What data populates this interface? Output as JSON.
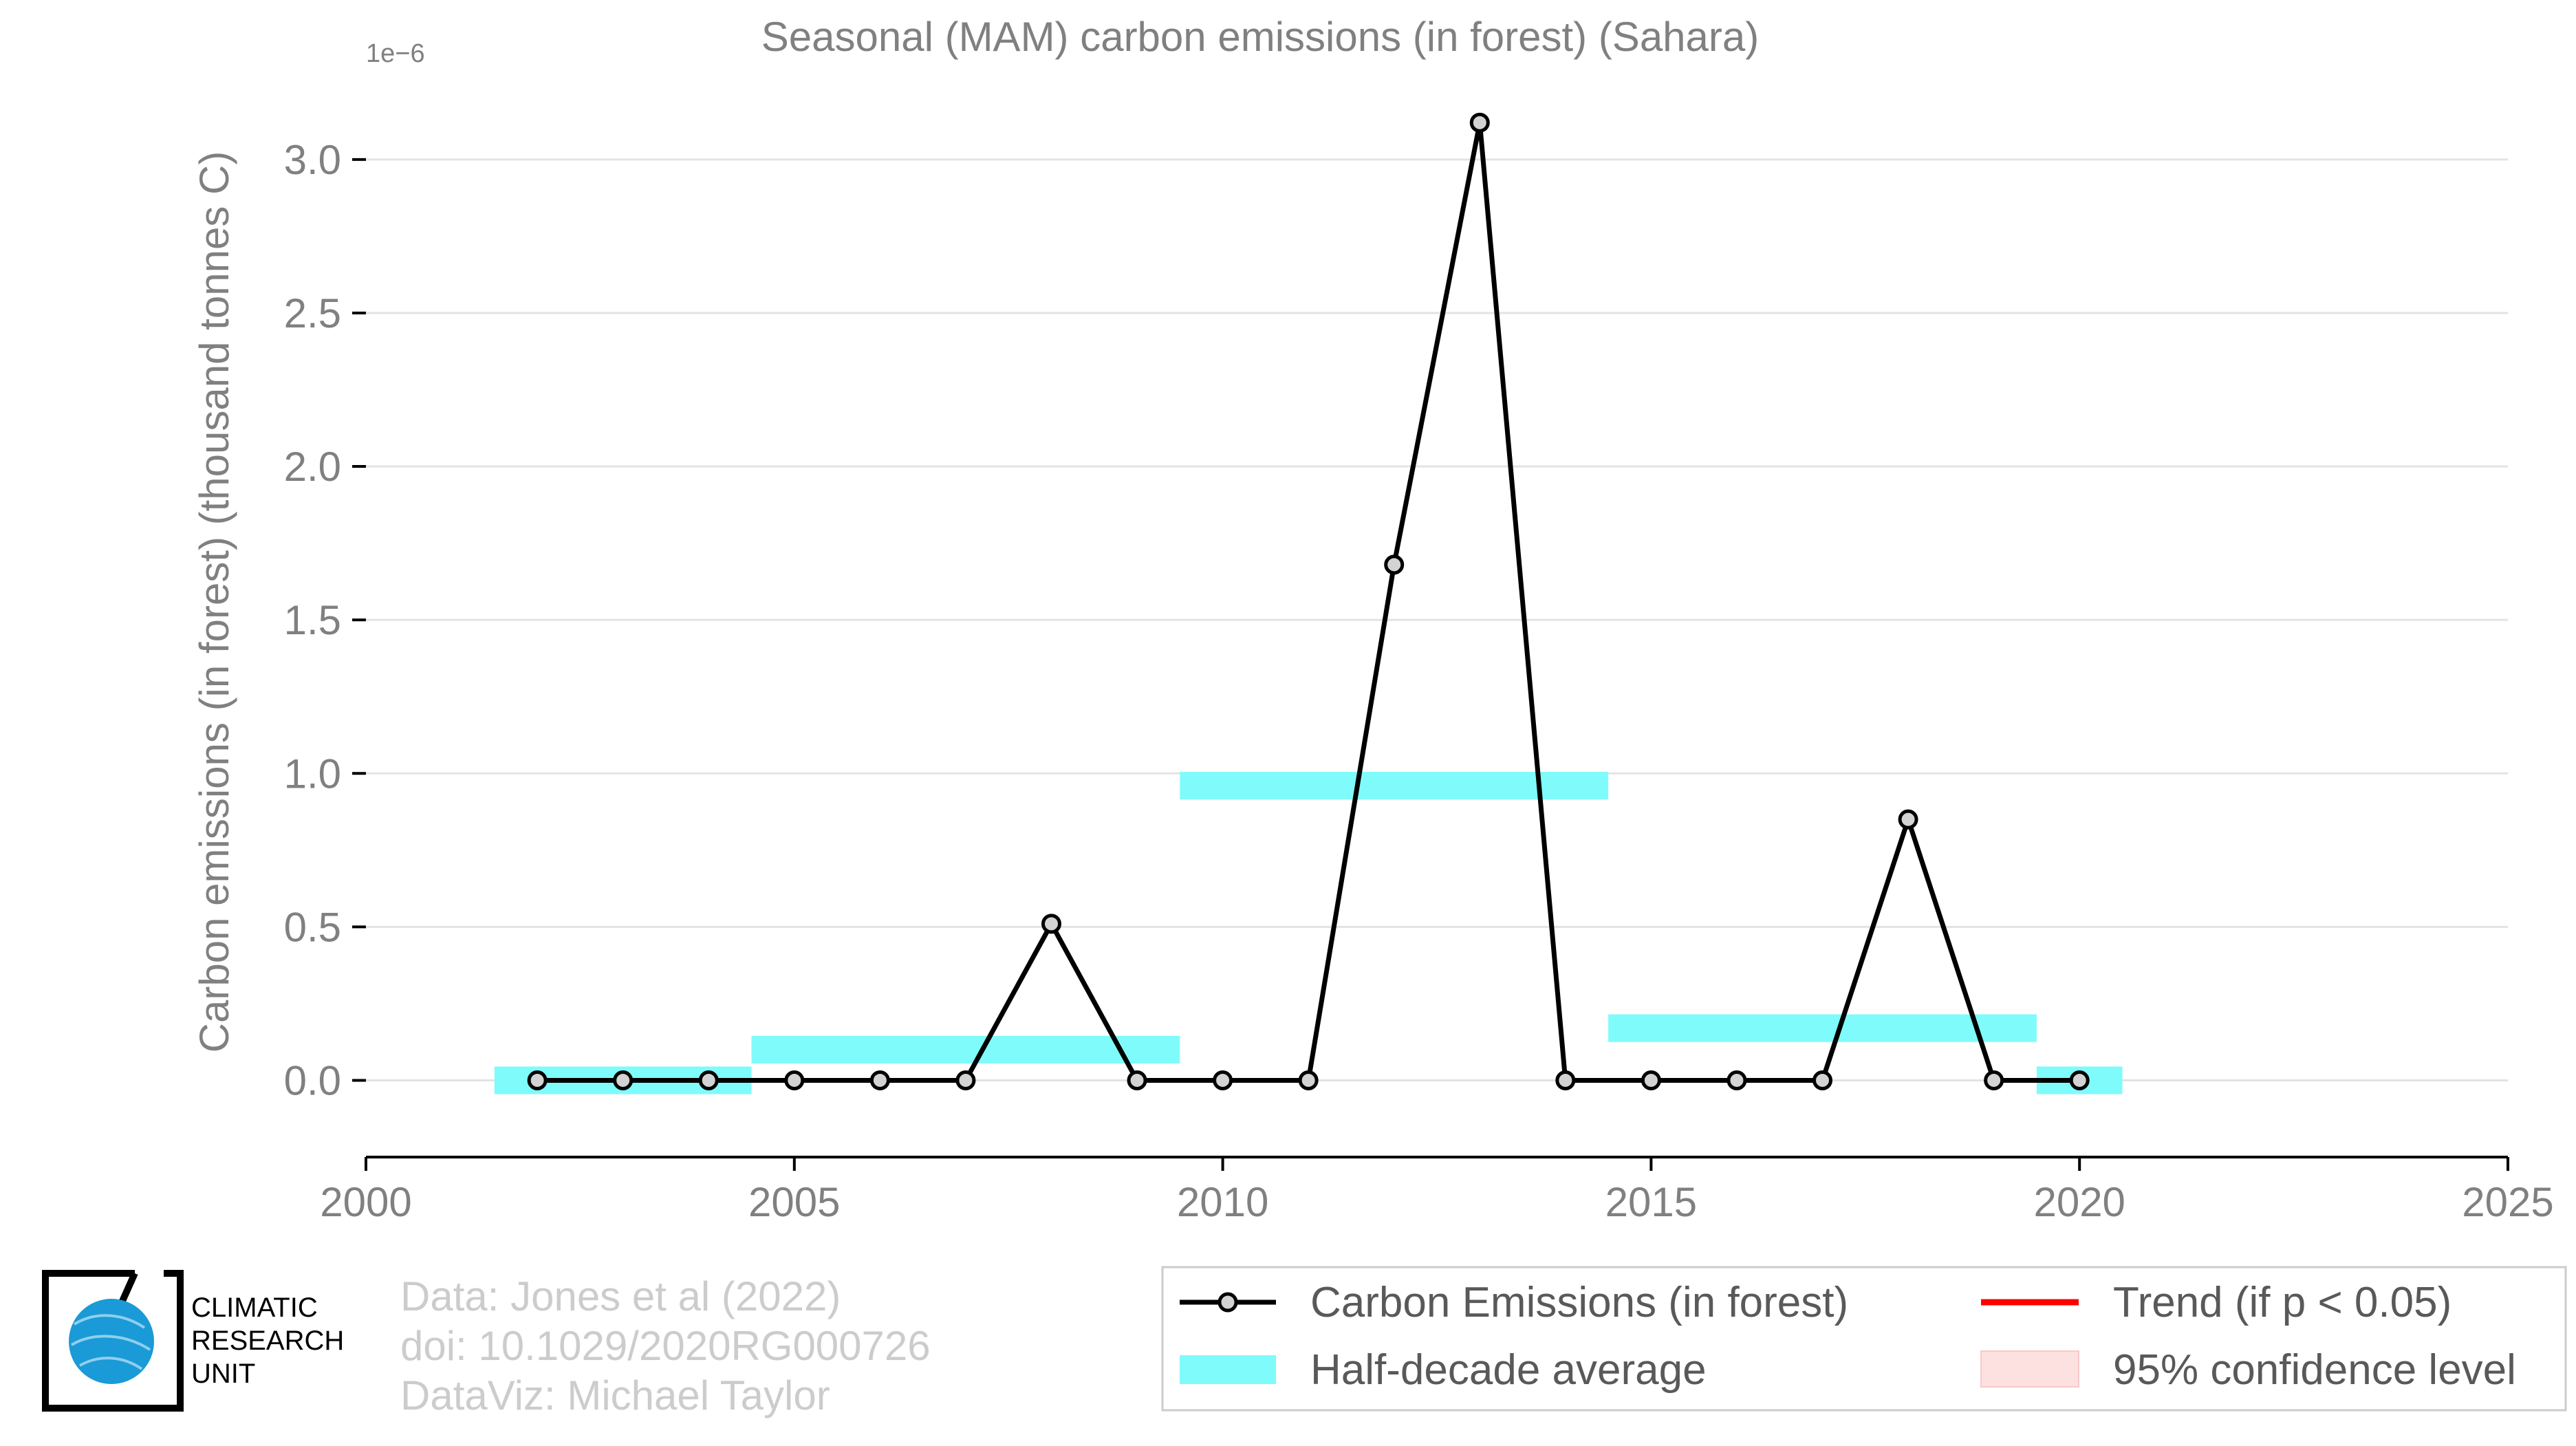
{
  "chart_data": {
    "type": "line",
    "title": "Seasonal (MAM) carbon emissions (in forest) (Sahara)",
    "ylabel": "Carbon emissions (in forest) (thousand tonnes C)",
    "xlabel": "",
    "y_multiplier_label": "1e−6",
    "xlim": [
      2000,
      2025
    ],
    "ylim": [
      -0.25,
      3.3
    ],
    "x_ticks": [
      2000,
      2005,
      2010,
      2015,
      2020,
      2025
    ],
    "y_ticks": [
      0.0,
      0.5,
      1.0,
      1.5,
      2.0,
      2.5,
      3.0
    ],
    "y_tick_labels": [
      "0.0",
      "0.5",
      "1.0",
      "1.5",
      "2.0",
      "2.5",
      "3.0"
    ],
    "grid": "horizontal",
    "series": [
      {
        "name": "Carbon Emissions (in forest)",
        "color": "#000000",
        "marker_fill": "#d3d3d3",
        "x": [
          2002,
          2003,
          2004,
          2005,
          2006,
          2007,
          2008,
          2009,
          2010,
          2011,
          2012,
          2013,
          2014,
          2015,
          2016,
          2017,
          2018,
          2019,
          2020
        ],
        "y": [
          0,
          0,
          0,
          0,
          0,
          0,
          0.51,
          0,
          0,
          0,
          1.68,
          3.12,
          0,
          0,
          0,
          0,
          0.85,
          0,
          0
        ]
      }
    ],
    "half_decade_average": {
      "name": "Half-decade average",
      "color": "#7ffbfb",
      "segments": [
        {
          "x_start": 2001.5,
          "x_end": 2004.5,
          "y": 0.0
        },
        {
          "x_start": 2004.5,
          "x_end": 2009.5,
          "y": 0.1
        },
        {
          "x_start": 2009.5,
          "x_end": 2014.5,
          "y": 0.96
        },
        {
          "x_start": 2014.5,
          "x_end": 2019.5,
          "y": 0.17
        },
        {
          "x_start": 2019.5,
          "x_end": 2020.5,
          "y": 0.0
        }
      ]
    },
    "legend": {
      "placement": "bottom-right",
      "entries": [
        {
          "label": "Carbon Emissions (in forest)",
          "kind": "line-marker",
          "color": "#000000"
        },
        {
          "label": "Trend (if p < 0.05)",
          "kind": "line",
          "color": "#ff0000"
        },
        {
          "label": "Half-decade average",
          "kind": "band",
          "color": "#7ffbfb"
        },
        {
          "label": "95% confidence level",
          "kind": "patch",
          "color": "#fde0e0"
        }
      ]
    }
  },
  "credits": {
    "line1": "Data: Jones et al (2022)",
    "line2": "doi: 10.1029/2020RG000726",
    "line3": "DataViz: Michael Taylor"
  },
  "logo": {
    "line1": "CLIMATIC",
    "line2": "RESEARCH",
    "line3": "UNIT",
    "globe_color": "#1a9ad6"
  }
}
